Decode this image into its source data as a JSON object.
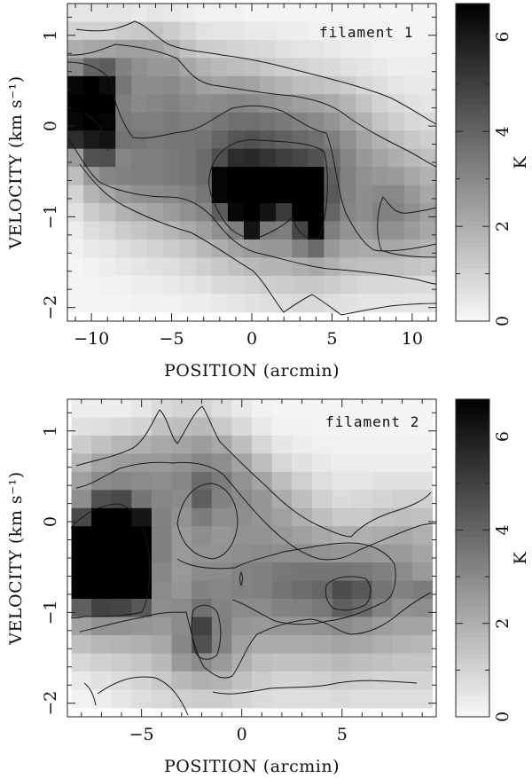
{
  "chart_data": [
    {
      "type": "heatmap",
      "label": "filament 1",
      "xlabel": "POSITION (arcmin)",
      "ylabel": "VELOCITY (km s⁻¹)",
      "xlim": [
        -11.5,
        11.5
      ],
      "ylim": [
        -2.15,
        1.35
      ],
      "xticks": [
        -10,
        -5,
        0,
        5,
        10
      ],
      "yticks": [
        -2,
        -1,
        0,
        1
      ],
      "colorbar": {
        "label": "K",
        "range": [
          0,
          6.7
        ],
        "ticks": [
          0,
          2,
          4,
          6
        ]
      },
      "intensity_scale": 6.7,
      "x": [
        -11,
        -10,
        -9,
        -8,
        -7,
        -6,
        -5,
        -4,
        -3,
        -2,
        -1,
        0,
        1,
        2,
        3,
        4,
        5,
        6,
        7,
        8,
        9,
        10,
        11
      ],
      "y": [
        1.25,
        1.05,
        0.85,
        0.65,
        0.45,
        0.25,
        0.05,
        -0.15,
        -0.35,
        -0.55,
        -0.75,
        -0.95,
        -1.15,
        -1.35,
        -1.55,
        -1.75,
        -1.95
      ],
      "z": [
        [
          0.5,
          0.5,
          0.5,
          0.5,
          0.4,
          0.5,
          0.4,
          0.3,
          0.2,
          0.2,
          0.2,
          0.1,
          0.1,
          0.1,
          0.1,
          0.1,
          0.1,
          0.1,
          0.1,
          0.1,
          0.1,
          0.1,
          0.1
        ],
        [
          1.0,
          1.0,
          1.0,
          1.2,
          1.3,
          1.4,
          1.2,
          0.9,
          0.6,
          0.5,
          0.5,
          0.4,
          0.4,
          0.3,
          0.3,
          0.2,
          0.2,
          0.2,
          0.2,
          0.2,
          0.1,
          0.1,
          0.1
        ],
        [
          2.0,
          2.2,
          2.3,
          2.4,
          2.4,
          2.3,
          2.0,
          1.5,
          1.2,
          1.1,
          1.0,
          0.9,
          0.8,
          0.6,
          0.5,
          0.5,
          0.4,
          0.3,
          0.3,
          0.2,
          0.2,
          0.2,
          0.2
        ],
        [
          3.0,
          4.0,
          4.2,
          3.2,
          2.8,
          2.6,
          2.6,
          2.2,
          1.9,
          1.7,
          1.6,
          1.5,
          1.3,
          1.1,
          1.0,
          0.9,
          0.8,
          0.6,
          0.5,
          0.4,
          0.3,
          0.3,
          0.3
        ],
        [
          6.5,
          7.0,
          6.4,
          3.5,
          2.9,
          2.9,
          3.0,
          2.7,
          2.4,
          2.3,
          2.4,
          2.3,
          2.0,
          1.8,
          1.6,
          1.5,
          1.4,
          1.2,
          0.9,
          0.7,
          0.5,
          0.4,
          0.4
        ],
        [
          7.0,
          7.0,
          6.9,
          3.3,
          3.0,
          3.1,
          3.2,
          3.0,
          2.9,
          3.0,
          3.1,
          3.0,
          2.8,
          2.6,
          2.4,
          2.3,
          2.1,
          1.8,
          1.4,
          1.0,
          0.8,
          0.6,
          0.5
        ],
        [
          6.5,
          6.8,
          6.6,
          3.4,
          3.3,
          3.3,
          3.4,
          3.3,
          3.3,
          3.5,
          3.7,
          3.7,
          3.6,
          3.4,
          3.2,
          3.0,
          2.7,
          2.3,
          1.9,
          1.4,
          1.1,
          0.9,
          0.8
        ],
        [
          5.5,
          6.0,
          6.2,
          3.6,
          3.5,
          3.4,
          3.5,
          3.5,
          3.6,
          4.0,
          4.4,
          4.5,
          4.3,
          4.1,
          3.9,
          3.7,
          3.3,
          2.8,
          2.3,
          1.9,
          1.6,
          1.3,
          1.1
        ],
        [
          2.5,
          4.5,
          4.6,
          3.1,
          3.3,
          3.3,
          3.4,
          3.5,
          3.8,
          4.6,
          5.5,
          5.6,
          5.3,
          5.0,
          4.8,
          4.5,
          3.8,
          3.1,
          2.6,
          2.3,
          2.0,
          1.7,
          1.5
        ],
        [
          1.6,
          2.6,
          3.1,
          3.2,
          3.3,
          3.3,
          3.4,
          3.5,
          3.8,
          6.6,
          7.0,
          7.0,
          7.0,
          7.0,
          7.0,
          7.0,
          4.2,
          3.2,
          2.8,
          2.6,
          2.5,
          2.2,
          1.9
        ],
        [
          1.0,
          1.8,
          2.2,
          2.6,
          2.8,
          2.9,
          3.0,
          3.2,
          3.5,
          6.6,
          7.0,
          7.0,
          7.0,
          7.0,
          7.0,
          7.0,
          4.3,
          3.2,
          2.9,
          3.0,
          3.0,
          2.6,
          2.2
        ],
        [
          0.6,
          1.2,
          1.5,
          1.9,
          2.1,
          2.3,
          2.5,
          2.8,
          3.1,
          4.2,
          6.5,
          7.0,
          6.2,
          5.1,
          7.0,
          7.0,
          4.0,
          3.1,
          2.9,
          3.2,
          3.2,
          2.8,
          2.4
        ],
        [
          0.3,
          0.7,
          0.9,
          1.2,
          1.4,
          1.6,
          1.8,
          2.1,
          2.4,
          2.8,
          3.3,
          6.2,
          3.4,
          3.3,
          4.8,
          6.8,
          3.3,
          2.7,
          2.6,
          2.8,
          2.8,
          2.5,
          2.2
        ],
        [
          0.2,
          0.4,
          0.5,
          0.7,
          0.9,
          1.0,
          1.2,
          1.4,
          1.7,
          2.0,
          2.3,
          2.5,
          2.6,
          2.6,
          3.2,
          3.8,
          2.6,
          2.2,
          2.1,
          2.2,
          2.2,
          2.0,
          1.8
        ],
        [
          0.1,
          0.2,
          0.3,
          0.4,
          0.5,
          0.6,
          0.7,
          0.9,
          1.1,
          1.3,
          1.5,
          1.7,
          1.8,
          1.8,
          2.0,
          2.2,
          1.9,
          1.6,
          1.5,
          1.5,
          1.5,
          1.4,
          1.3
        ],
        [
          0.1,
          0.1,
          0.2,
          0.2,
          0.3,
          0.3,
          0.4,
          0.5,
          0.6,
          0.8,
          0.9,
          1.0,
          1.1,
          1.2,
          1.3,
          1.3,
          1.2,
          1.0,
          0.9,
          0.9,
          0.9,
          0.8,
          0.8
        ],
        [
          0.1,
          0.1,
          0.1,
          0.1,
          0.2,
          0.2,
          0.2,
          0.3,
          0.3,
          0.4,
          0.5,
          0.6,
          0.7,
          0.7,
          0.8,
          0.8,
          0.7,
          0.6,
          0.5,
          0.5,
          0.5,
          0.5,
          0.5
        ]
      ]
    },
    {
      "type": "heatmap",
      "label": "filament 2",
      "xlabel": "POSITION (arcmin)",
      "ylabel": "VELOCITY (km s⁻¹)",
      "xlim": [
        -8.7,
        9.7
      ],
      "ylim": [
        -2.15,
        1.35
      ],
      "xticks": [
        -5,
        0,
        5
      ],
      "yticks": [
        -2,
        -1,
        0,
        1
      ],
      "colorbar": {
        "label": "K",
        "range": [
          0,
          6.8
        ],
        "ticks": [
          0,
          2,
          4,
          6
        ]
      },
      "intensity_scale": 6.8,
      "x": [
        -8,
        -7,
        -6,
        -5,
        -4,
        -3,
        -2,
        -1,
        0,
        1,
        2,
        3,
        4,
        5,
        6,
        7,
        8,
        9
      ],
      "y": [
        1.25,
        1.05,
        0.85,
        0.65,
        0.45,
        0.25,
        0.05,
        -0.15,
        -0.35,
        -0.55,
        -0.75,
        -0.95,
        -1.15,
        -1.35,
        -1.55,
        -1.75,
        -1.95
      ],
      "z": [
        [
          0.3,
          0.3,
          0.3,
          0.5,
          0.8,
          1.0,
          1.0,
          0.7,
          0.4,
          0.2,
          0.1,
          0.1,
          0.1,
          0.1,
          0.1,
          0.1,
          0.1,
          0.1
        ],
        [
          0.6,
          0.7,
          0.8,
          1.0,
          1.5,
          1.6,
          1.7,
          1.3,
          0.8,
          0.4,
          0.2,
          0.2,
          0.1,
          0.1,
          0.1,
          0.1,
          0.1,
          0.1
        ],
        [
          1.2,
          1.5,
          1.8,
          2.0,
          2.2,
          2.3,
          2.5,
          2.2,
          1.6,
          0.9,
          0.5,
          0.3,
          0.2,
          0.2,
          0.2,
          0.2,
          0.2,
          0.2
        ],
        [
          1.8,
          2.3,
          2.5,
          2.6,
          2.6,
          2.8,
          3.1,
          2.9,
          2.3,
          1.6,
          0.9,
          0.6,
          0.4,
          0.3,
          0.3,
          0.3,
          0.3,
          0.3
        ],
        [
          2.4,
          3.0,
          3.1,
          3.0,
          2.9,
          3.1,
          3.9,
          3.4,
          2.8,
          2.3,
          1.6,
          1.1,
          0.7,
          0.5,
          0.5,
          0.6,
          0.6,
          0.6
        ],
        [
          2.9,
          4.6,
          4.8,
          3.6,
          3.1,
          3.0,
          4.2,
          3.2,
          3.0,
          2.7,
          2.1,
          1.6,
          1.1,
          0.8,
          0.9,
          1.0,
          1.1,
          1.1
        ],
        [
          4.8,
          6.8,
          7.0,
          6.2,
          3.2,
          2.8,
          3.4,
          2.9,
          2.9,
          2.7,
          2.4,
          2.0,
          1.6,
          1.3,
          1.3,
          1.5,
          1.6,
          1.5
        ],
        [
          7.0,
          7.0,
          7.0,
          7.0,
          3.3,
          2.6,
          2.9,
          2.7,
          2.8,
          2.8,
          2.6,
          2.4,
          2.2,
          2.0,
          2.0,
          2.1,
          2.2,
          2.0
        ],
        [
          7.0,
          7.0,
          7.0,
          7.0,
          3.3,
          2.6,
          2.8,
          2.8,
          2.9,
          3.0,
          2.9,
          2.9,
          2.8,
          2.7,
          2.7,
          2.6,
          2.6,
          2.3
        ],
        [
          7.0,
          7.0,
          7.0,
          7.0,
          3.1,
          2.6,
          3.0,
          3.0,
          3.2,
          3.3,
          3.5,
          3.6,
          3.6,
          3.6,
          3.5,
          3.3,
          3.0,
          2.6
        ],
        [
          7.0,
          7.0,
          7.0,
          7.0,
          3.0,
          2.7,
          3.2,
          3.1,
          3.2,
          3.3,
          3.6,
          3.8,
          4.0,
          4.7,
          4.4,
          3.6,
          3.2,
          3.4
        ],
        [
          4.2,
          5.0,
          4.9,
          4.4,
          2.9,
          3.0,
          3.7,
          3.2,
          3.0,
          3.0,
          3.2,
          3.3,
          3.5,
          4.2,
          3.9,
          3.2,
          2.8,
          2.9
        ],
        [
          2.4,
          2.8,
          2.8,
          2.7,
          2.6,
          3.0,
          5.0,
          3.3,
          2.7,
          2.6,
          2.7,
          2.7,
          2.8,
          3.0,
          2.8,
          2.5,
          2.3,
          2.3
        ],
        [
          1.6,
          1.8,
          1.9,
          2.0,
          2.2,
          3.1,
          4.6,
          3.2,
          2.4,
          2.1,
          2.1,
          2.1,
          2.2,
          2.3,
          2.2,
          2.0,
          1.9,
          1.8
        ],
        [
          0.9,
          1.1,
          1.2,
          1.4,
          1.7,
          2.6,
          3.0,
          2.6,
          2.0,
          1.6,
          1.5,
          1.5,
          1.6,
          1.7,
          1.6,
          1.5,
          1.4,
          1.4
        ],
        [
          0.4,
          0.6,
          0.8,
          1.0,
          1.3,
          1.7,
          2.0,
          1.9,
          1.5,
          1.2,
          1.0,
          1.0,
          1.1,
          1.2,
          1.1,
          1.0,
          1.0,
          1.0
        ],
        [
          0.2,
          0.3,
          0.5,
          0.7,
          0.9,
          1.1,
          1.2,
          1.2,
          1.0,
          0.8,
          0.7,
          0.7,
          0.7,
          0.8,
          0.7,
          0.7,
          0.7,
          0.7
        ]
      ]
    }
  ]
}
